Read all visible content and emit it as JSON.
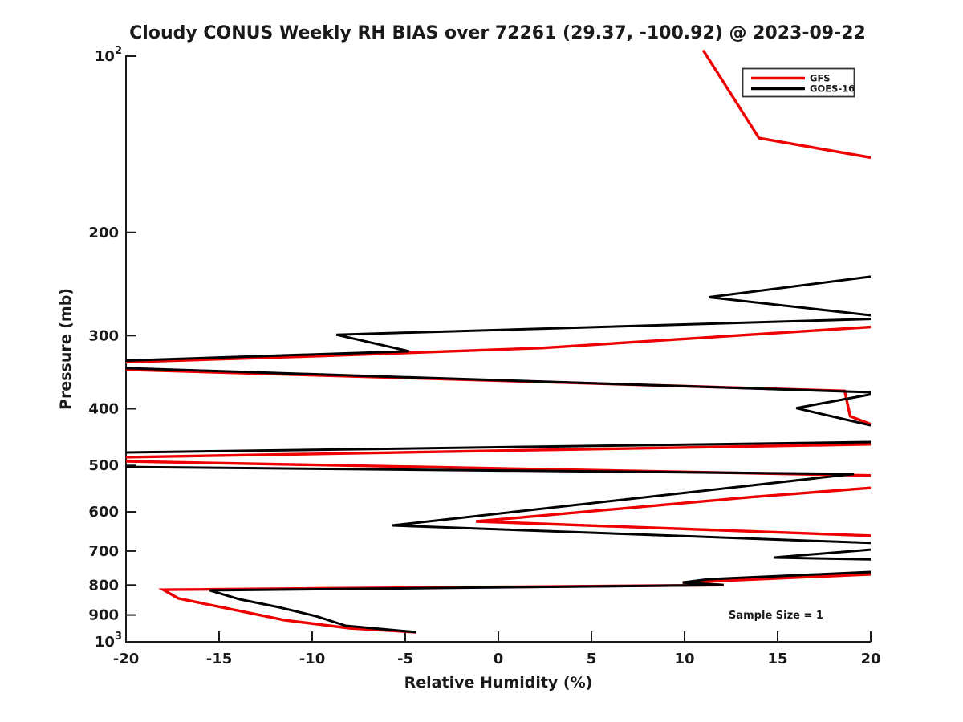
{
  "chart": {
    "title": "Cloudy CONUS Weekly RH BIAS over 72261 (29.37, -100.92) @ 2023-09-22",
    "xlabel": "Relative Humidity (%)",
    "ylabel": "Pressure (mb)",
    "annotation": "Sample Size = 1",
    "legend": {
      "entries": [
        {
          "label": "GFS",
          "color": "#ee0000"
        },
        {
          "label": "GOES-16",
          "color": "#000000"
        }
      ]
    }
  },
  "chart_data": {
    "type": "line",
    "title": "Cloudy CONUS Weekly RH BIAS over 72261 (29.37, -100.92) @ 2023-09-22",
    "xlabel": "Relative Humidity (%)",
    "ylabel": "Pressure (mb)",
    "annotation": "Sample Size = 1",
    "xlim": [
      -20,
      20
    ],
    "ylim": [
      100,
      1000
    ],
    "y_scale": "log",
    "y_inverted": true,
    "grid": false,
    "legend_position": "top-right",
    "x_ticks": [
      -20,
      -15,
      -10,
      -5,
      0,
      5,
      10,
      15,
      20
    ],
    "y_ticks": [
      100,
      200,
      300,
      400,
      500,
      600,
      700,
      800,
      900,
      1000
    ],
    "y_tick_labels": [
      "10^2",
      "200",
      "300",
      "400",
      "500",
      "600",
      "700",
      "800",
      "900",
      "10^3"
    ],
    "values_clipped_at_rh": 20,
    "series": [
      {
        "name": "GFS",
        "color": "#ee0000",
        "width": 3.4,
        "segments": [
          [
            [
              11.0,
              97.7
            ],
            [
              14.0,
              138
            ],
            [
              20,
              149
            ]
          ],
          [
            [
              20,
              290
            ],
            [
              2.3,
              315
            ],
            [
              -9.5,
              325
            ],
            [
              -20,
              333
            ]
          ],
          [
            [
              -20,
              343
            ],
            [
              18.6,
              373
            ],
            [
              18.9,
              412
            ],
            [
              20,
              425
            ]
          ],
          [
            [
              20,
              460
            ],
            [
              -20,
              484
            ]
          ],
          [
            [
              -20,
              492
            ],
            [
              20,
              520
            ]
          ],
          [
            [
              20,
              546
            ],
            [
              13.6,
              566
            ],
            [
              -1.2,
              623
            ],
            [
              20,
              659
            ]
          ],
          [
            [
              20,
              767
            ],
            [
              9.9,
              792
            ],
            [
              12.1,
              800
            ],
            [
              -18.0,
              815
            ],
            [
              -17.2,
              843
            ],
            [
              -11.5,
              918
            ],
            [
              -8.0,
              948
            ],
            [
              -4.4,
              963
            ]
          ]
        ]
      },
      {
        "name": "GOES-16",
        "color": "#000000",
        "width": 3,
        "segments": [
          [
            [
              20,
              238
            ],
            [
              11.3,
              258
            ],
            [
              20,
              277
            ]
          ],
          [
            [
              20,
              281
            ],
            [
              -8.7,
              299
            ],
            [
              -4.8,
              319
            ],
            [
              -20,
              331
            ]
          ],
          [
            [
              -20,
              341
            ],
            [
              20,
              375
            ]
          ],
          [
            [
              20,
              378
            ],
            [
              16.0,
              399
            ],
            [
              20,
              427
            ]
          ],
          [
            [
              20,
              456
            ],
            [
              -20,
              475
            ]
          ],
          [
            [
              -20,
              503
            ],
            [
              19.1,
              517
            ],
            [
              -5.7,
              633
            ],
            [
              20,
              678
            ]
          ],
          [
            [
              20,
              696
            ],
            [
              14.8,
              718
            ],
            [
              20,
              723
            ]
          ],
          [
            [
              20,
              760
            ],
            [
              11.3,
              782
            ],
            [
              9.9,
              792
            ],
            [
              12.1,
              800
            ],
            [
              -15.5,
              817
            ],
            [
              -13.9,
              846
            ],
            [
              -11.8,
              873
            ],
            [
              -9.8,
              904
            ],
            [
              -8.2,
              939
            ],
            [
              -4.4,
              963
            ]
          ]
        ]
      }
    ]
  },
  "layout_colors": {
    "axis": "#1a1a1a",
    "background": "#ffffff",
    "legend_border": "#333333"
  }
}
